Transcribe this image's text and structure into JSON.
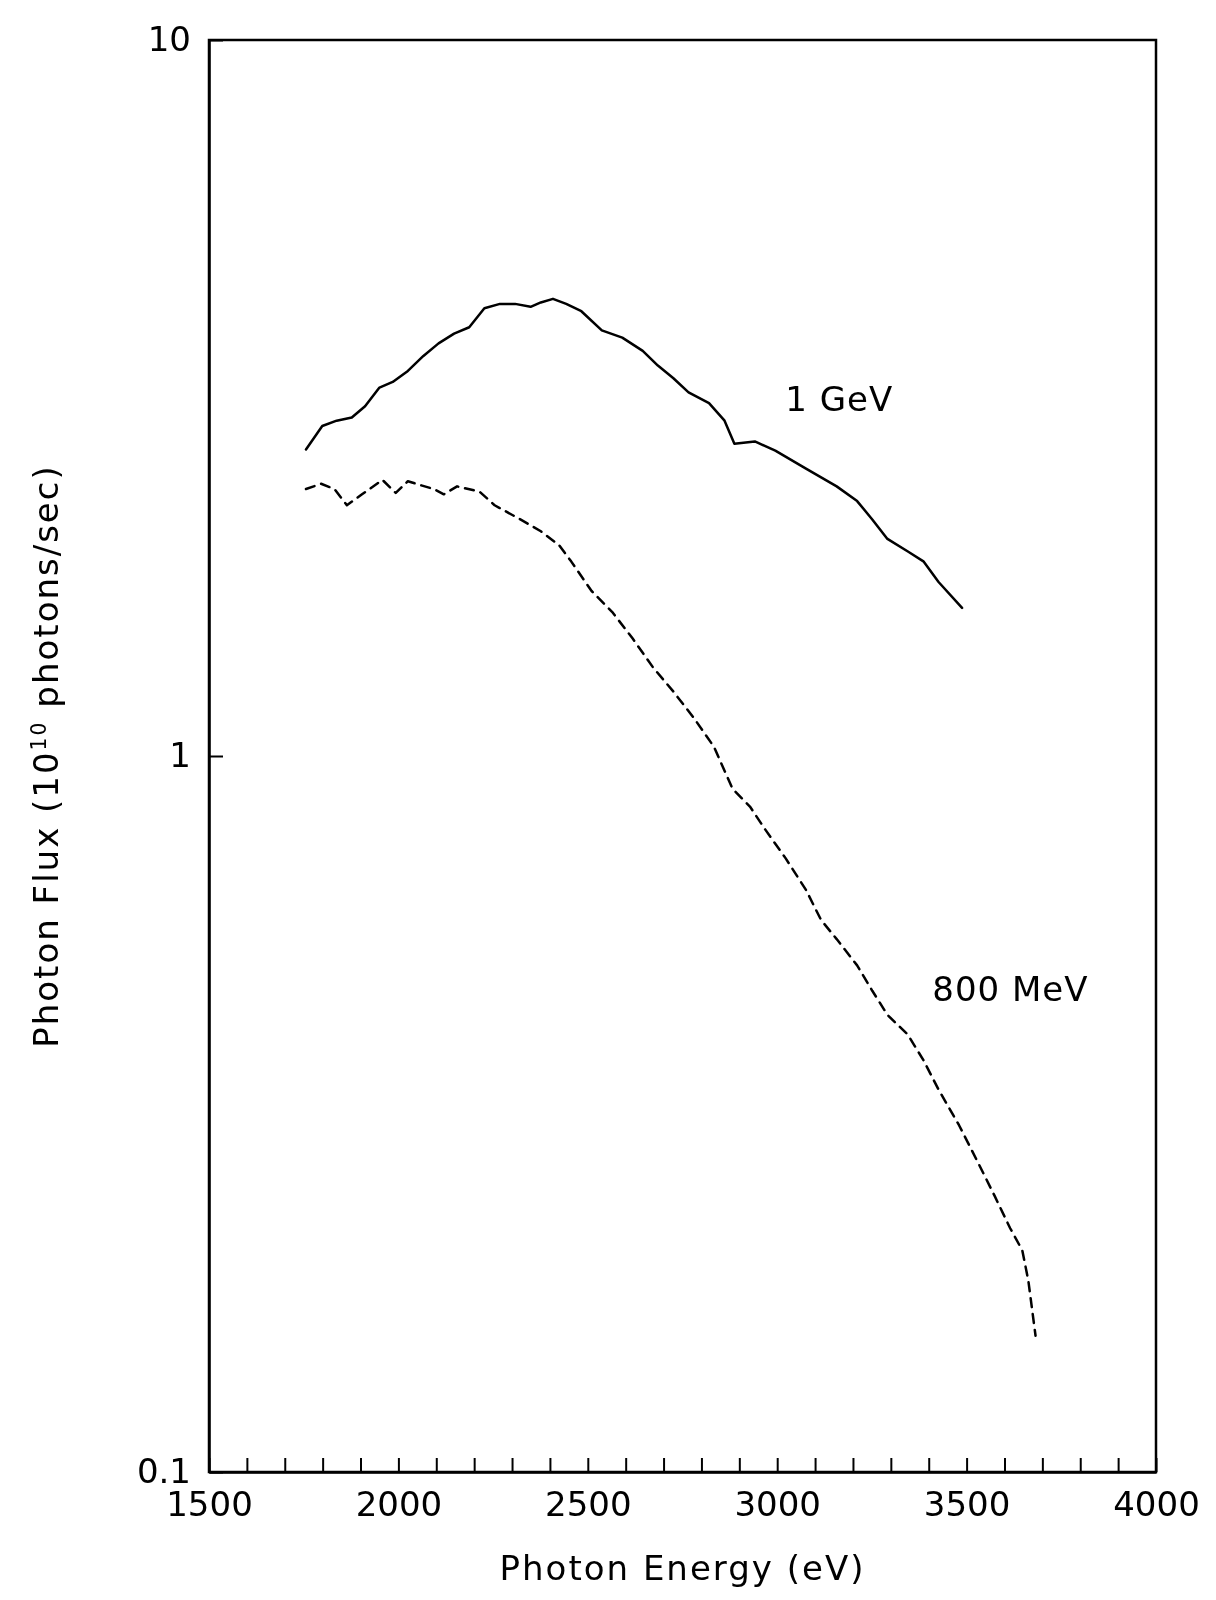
{
  "chart_data": {
    "type": "line",
    "xlabel": "Photon Energy (eV)",
    "ylabel": "Photon Flux (10$^{10}$ photons/sec)",
    "log": "y",
    "xlim": [
      1500,
      4000
    ],
    "ylim": [
      0.1,
      10
    ],
    "xticks": [
      1500,
      {
        "value": 1600,
        "label": null
      },
      {
        "value": 1700,
        "label": null
      },
      {
        "value": 1800,
        "label": null
      },
      {
        "value": 1900,
        "label": null
      },
      2000,
      {
        "value": 2100,
        "label": null
      },
      {
        "value": 2200,
        "label": null
      },
      {
        "value": 2300,
        "label": null
      },
      {
        "value": 2400,
        "label": null
      },
      2500,
      {
        "value": 2600,
        "label": null
      },
      {
        "value": 2700,
        "label": null
      },
      {
        "value": 2800,
        "label": null
      },
      {
        "value": 2900,
        "label": null
      },
      3000,
      {
        "value": 3100,
        "label": null
      },
      {
        "value": 3200,
        "label": null
      },
      {
        "value": 3300,
        "label": null
      },
      {
        "value": 3400,
        "label": null
      },
      3500,
      {
        "value": 3600,
        "label": null
      },
      {
        "value": 3700,
        "label": null
      },
      {
        "value": 3800,
        "label": null
      },
      {
        "value": 3900,
        "label": null
      },
      4000
    ],
    "yticks": [
      0.1,
      1,
      10
    ],
    "grid": false,
    "series": [
      {
        "name": "1 GeV",
        "color": "#000000",
        "line_style": "solid",
        "x": [
          1756,
          1799,
          1837,
          1877,
          1912,
          1950,
          1985,
          2025,
          2066,
          2106,
          2147,
          2187,
          2227,
          2268,
          2308,
          2349,
          2376,
          2408,
          2443,
          2483,
          2537,
          2591,
          2645,
          2685,
          2726,
          2766,
          2820,
          2861,
          2887,
          2941,
          2995,
          3076,
          3157,
          3211,
          3251,
          3291,
          3345,
          3386,
          3426,
          3488
        ],
        "values": [
          2.68,
          2.89,
          2.94,
          2.97,
          3.08,
          3.27,
          3.33,
          3.45,
          3.62,
          3.77,
          3.89,
          3.97,
          4.22,
          4.28,
          4.28,
          4.24,
          4.3,
          4.35,
          4.28,
          4.18,
          3.93,
          3.84,
          3.68,
          3.51,
          3.37,
          3.22,
          3.11,
          2.94,
          2.73,
          2.75,
          2.67,
          2.52,
          2.38,
          2.27,
          2.14,
          2.01,
          1.93,
          1.87,
          1.75,
          1.61
        ]
      },
      {
        "name": "800 MeV",
        "color": "#000000",
        "line_style": "dashed",
        "x": [
          1756,
          1796,
          1831,
          1864,
          1904,
          1958,
          1993,
          2025,
          2058,
          2093,
          2120,
          2155,
          2214,
          2254,
          2322,
          2376,
          2424,
          2456,
          2510,
          2564,
          2618,
          2672,
          2726,
          2780,
          2833,
          2882,
          2928,
          2968,
          3022,
          3076,
          3116,
          3157,
          3211,
          3251,
          3291,
          3345,
          3386,
          3426,
          3480,
          3534,
          3574,
          3615,
          3647,
          3663,
          3682
        ],
        "values": [
          2.36,
          2.4,
          2.36,
          2.24,
          2.32,
          2.43,
          2.33,
          2.42,
          2.39,
          2.36,
          2.32,
          2.38,
          2.34,
          2.24,
          2.14,
          2.06,
          1.97,
          1.87,
          1.7,
          1.59,
          1.46,
          1.33,
          1.23,
          1.13,
          1.03,
          0.9,
          0.85,
          0.79,
          0.72,
          0.65,
          0.59,
          0.555,
          0.51,
          0.47,
          0.435,
          0.408,
          0.376,
          0.342,
          0.305,
          0.268,
          0.243,
          0.219,
          0.204,
          0.185,
          0.155
        ]
      }
    ]
  }
}
